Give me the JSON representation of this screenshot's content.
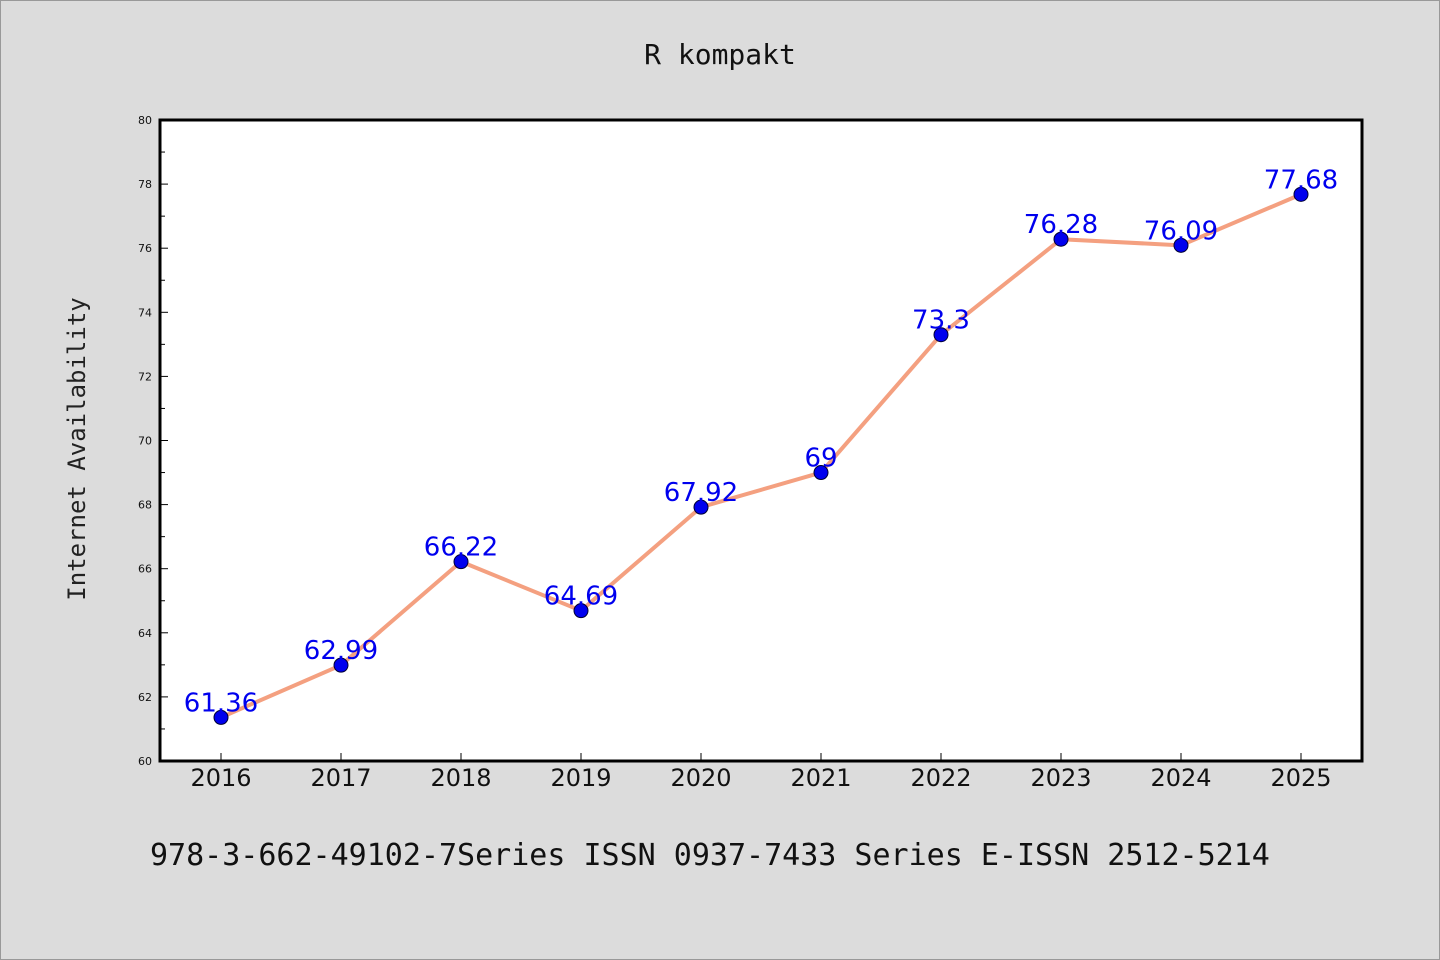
{
  "chart_data": {
    "type": "line",
    "title": "R kompakt",
    "xlabel": "",
    "ylabel": "Internet Availability",
    "categories": [
      "2016",
      "2017",
      "2018",
      "2019",
      "2020",
      "2021",
      "2022",
      "2023",
      "2024",
      "2025"
    ],
    "values": [
      61.36,
      62.99,
      66.22,
      64.69,
      67.92,
      69,
      73.3,
      76.28,
      76.09,
      77.68
    ],
    "value_labels": [
      "61.36",
      "62.99",
      "66.22",
      "64.69",
      "67.92",
      "69",
      "73.3",
      "76.28",
      "76.09",
      "77.68"
    ],
    "ylim": [
      60,
      80
    ],
    "yticks": [
      60,
      62,
      64,
      66,
      68,
      70,
      72,
      74,
      76,
      78,
      80
    ],
    "grid": false,
    "legend": "none",
    "colors": {
      "line": "#f4a080",
      "marker": "#0000ee",
      "label": "#0000ee",
      "plot_bg": "#ffffff",
      "page_bg": "#dcdcdc"
    }
  },
  "footer": "978-3-662-49102-7Series ISSN 0937-7433 Series E-ISSN 2512-5214"
}
